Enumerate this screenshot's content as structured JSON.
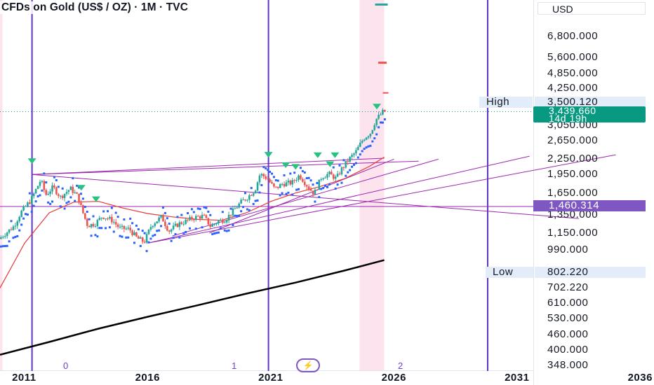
{
  "header": {
    "title": "CFDs on Gold (US$ / OZ) · 1M · TVC",
    "currency": "USD"
  },
  "axis": {
    "y_ticks": [
      "6,800.000",
      "5,600.000",
      "4,850.000",
      "4,250.000",
      "3,050.000",
      "2,650.000",
      "2,250.000",
      "1,950.000",
      "1,650.000",
      "1,350.000",
      "1,150.000",
      "990.000",
      "802.220",
      "702.220",
      "610.000",
      "530.000",
      "460.000",
      "400.000",
      "348.000"
    ],
    "x_ticks": [
      "2011",
      "2016",
      "2021",
      "2026",
      "2031",
      "2036"
    ]
  },
  "markers": {
    "high_label": "High",
    "high_value": "3,500.120",
    "low_label": "Low",
    "low_value": "802.220",
    "last_price": "3,439.660",
    "countdown": "14d 19h",
    "crosshair_value": "1,460.314",
    "cycles": [
      "0",
      "1",
      "2"
    ]
  },
  "colors": {
    "up": "#26a69a",
    "down": "#ef5350",
    "cycle_line": "#5b35c7",
    "trendline": "#9c27b0",
    "highlight": "#fde3ee",
    "psar": "#2962ff",
    "ma_red": "#e53935",
    "ma_black": "#000000",
    "last_tag": "#089981",
    "crosshair_tag": "#7e57c2",
    "label_bg": "#e3edfa"
  },
  "chart_data": {
    "type": "candlestick",
    "title": "CFDs on Gold (US$ / OZ)",
    "interval": "1M",
    "source": "TVC",
    "y_scale": "log",
    "ylim": [
      340,
      7900
    ],
    "xlim": [
      2010.0,
      2036.7
    ],
    "x_ticks": [
      2011,
      2016,
      2021,
      2026,
      2031,
      2036
    ],
    "y_ticks": [
      6800,
      5600,
      4850,
      4250,
      3500.12,
      3050,
      2650,
      2250,
      1950,
      1650,
      1460.314,
      1350,
      1150,
      990,
      802.22,
      702.22,
      610,
      530,
      460,
      400,
      348
    ],
    "price_path": [
      [
        2010.0,
        1090
      ],
      [
        2010.6,
        1220
      ],
      [
        2010.9,
        1390
      ],
      [
        2011.3,
        1550
      ],
      [
        2011.7,
        1860
      ],
      [
        2011.9,
        1620
      ],
      [
        2012.2,
        1740
      ],
      [
        2012.5,
        1590
      ],
      [
        2012.9,
        1720
      ],
      [
        2013.2,
        1600
      ],
      [
        2013.4,
        1390
      ],
      [
        2013.6,
        1230
      ],
      [
        2013.9,
        1250
      ],
      [
        2014.2,
        1340
      ],
      [
        2014.6,
        1290
      ],
      [
        2014.9,
        1200
      ],
      [
        2015.3,
        1190
      ],
      [
        2015.6,
        1100
      ],
      [
        2015.9,
        1060
      ],
      [
        2016.2,
        1240
      ],
      [
        2016.6,
        1330
      ],
      [
        2016.9,
        1170
      ],
      [
        2017.3,
        1250
      ],
      [
        2017.7,
        1290
      ],
      [
        2017.9,
        1320
      ],
      [
        2018.3,
        1340
      ],
      [
        2018.6,
        1220
      ],
      [
        2018.9,
        1280
      ],
      [
        2019.2,
        1300
      ],
      [
        2019.5,
        1400
      ],
      [
        2019.8,
        1510
      ],
      [
        2020.1,
        1590
      ],
      [
        2020.4,
        1700
      ],
      [
        2020.6,
        1960
      ],
      [
        2020.9,
        1880
      ],
      [
        2021.2,
        1710
      ],
      [
        2021.5,
        1790
      ],
      [
        2021.9,
        1810
      ],
      [
        2022.2,
        1940
      ],
      [
        2022.6,
        1720
      ],
      [
        2022.8,
        1640
      ],
      [
        2023.1,
        1910
      ],
      [
        2023.4,
        1960
      ],
      [
        2023.7,
        1880
      ],
      [
        2023.9,
        2040
      ],
      [
        2024.2,
        2230
      ],
      [
        2024.5,
        2400
      ],
      [
        2024.8,
        2700
      ],
      [
        2025.1,
        2850
      ],
      [
        2025.3,
        3200
      ],
      [
        2025.5,
        3350
      ],
      [
        2025.6,
        3439.66
      ]
    ],
    "series": [
      {
        "name": "",
        "kind": "moving_average",
        "color": "#e53935",
        "values": [
          [
            2010.0,
            700
          ],
          [
            2011.0,
            1050
          ],
          [
            2012.0,
            1380
          ],
          [
            2013.0,
            1520
          ],
          [
            2014.0,
            1530
          ],
          [
            2015.0,
            1440
          ],
          [
            2016.0,
            1370
          ],
          [
            2017.0,
            1330
          ],
          [
            2018.0,
            1300
          ],
          [
            2019.0,
            1290
          ],
          [
            2020.0,
            1380
          ],
          [
            2021.0,
            1530
          ],
          [
            2022.0,
            1650
          ],
          [
            2023.0,
            1750
          ],
          [
            2024.0,
            1880
          ],
          [
            2025.0,
            2100
          ],
          [
            2025.6,
            2280
          ]
        ]
      },
      {
        "name": "",
        "kind": "moving_average",
        "color": "#000000",
        "values": [
          [
            2010.0,
            383
          ],
          [
            2012.0,
            430
          ],
          [
            2014.0,
            485
          ],
          [
            2016.0,
            540
          ],
          [
            2018.0,
            598
          ],
          [
            2020.0,
            665
          ],
          [
            2022.0,
            735
          ],
          [
            2024.0,
            820
          ],
          [
            2025.6,
            900
          ]
        ]
      }
    ],
    "cycle_lines_x": [
      2011.3,
      2020.9,
      2029.8
    ],
    "highlight_x_ranges": [
      [
        2024.6,
        2025.6
      ],
      [
        2010.0,
        2010.1
      ]
    ],
    "high": 3500.12,
    "low": 802.22,
    "last_price": 3439.66,
    "horizontal_level": 1460.314
  }
}
